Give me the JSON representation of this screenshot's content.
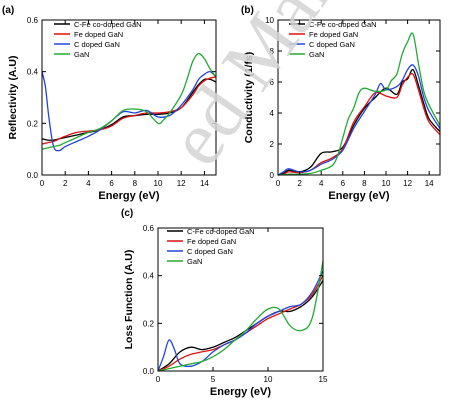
{
  "watermark": "ed Manuscript",
  "chart_data": [
    {
      "type": "line",
      "panel_label": "(a)",
      "xlabel": "Energy (eV)",
      "ylabel": "Reflectivity (A.U)",
      "xlim": [
        0,
        15
      ],
      "ylim": [
        0,
        0.6
      ],
      "xticks": [
        0,
        2,
        4,
        6,
        8,
        10,
        12,
        14
      ],
      "xticklabels": [
        "0",
        "2",
        "4",
        "6",
        "8",
        "10",
        "12",
        "14"
      ],
      "yticks": [
        0,
        0.2,
        0.4,
        0.6
      ],
      "yticklabels": [
        "0.0",
        "0.2",
        "0.4",
        "0.6"
      ],
      "legend": {
        "position": "top-left"
      },
      "series": [
        {
          "name": "C-Fe co-doped GaN",
          "color": "#000000",
          "x": [
            0,
            0.5,
            1,
            1.5,
            2,
            3,
            4,
            5,
            6,
            7,
            8,
            9,
            10,
            11,
            12,
            13,
            13.5,
            14,
            14.5,
            15
          ],
          "y": [
            0.14,
            0.135,
            0.135,
            0.14,
            0.145,
            0.155,
            0.165,
            0.175,
            0.195,
            0.225,
            0.23,
            0.235,
            0.235,
            0.24,
            0.26,
            0.32,
            0.35,
            0.37,
            0.37,
            0.36
          ]
        },
        {
          "name": "Fe doped GaN",
          "color": "#dd1111",
          "x": [
            0,
            0.5,
            1,
            1.5,
            2,
            3,
            4,
            5,
            6,
            7,
            8,
            9,
            10,
            11,
            12,
            13,
            13.5,
            14,
            14.5,
            15
          ],
          "y": [
            0.12,
            0.125,
            0.13,
            0.14,
            0.15,
            0.165,
            0.17,
            0.175,
            0.19,
            0.22,
            0.23,
            0.24,
            0.24,
            0.245,
            0.26,
            0.31,
            0.345,
            0.365,
            0.375,
            0.38
          ]
        },
        {
          "name": "C doped GaN",
          "color": "#2244dd",
          "x": [
            0,
            0.3,
            0.6,
            1,
            1.5,
            2,
            3,
            4,
            5,
            6,
            7,
            8,
            9,
            10,
            11,
            12,
            13,
            13.5,
            14,
            14.5,
            15
          ],
          "y": [
            0.4,
            0.34,
            0.22,
            0.11,
            0.095,
            0.11,
            0.13,
            0.15,
            0.175,
            0.21,
            0.245,
            0.24,
            0.25,
            0.225,
            0.23,
            0.27,
            0.33,
            0.37,
            0.39,
            0.4,
            0.38
          ]
        },
        {
          "name": "GaN",
          "color": "#22aa33",
          "x": [
            0,
            0.5,
            1,
            1.5,
            2,
            3,
            4,
            5,
            6,
            7,
            8,
            9,
            10,
            10.5,
            11,
            12,
            12.5,
            13,
            13.5,
            14,
            14.5,
            15
          ],
          "y": [
            0.1,
            0.105,
            0.11,
            0.115,
            0.125,
            0.145,
            0.165,
            0.18,
            0.21,
            0.25,
            0.255,
            0.245,
            0.2,
            0.215,
            0.24,
            0.31,
            0.37,
            0.44,
            0.47,
            0.45,
            0.41,
            0.38
          ]
        }
      ]
    },
    {
      "type": "line",
      "panel_label": "(b)",
      "xlabel": "Energy (eV)",
      "ylabel": "Conductivity (1/fs)",
      "xlim": [
        0,
        15
      ],
      "ylim": [
        0,
        10
      ],
      "xticks": [
        0,
        2,
        4,
        6,
        8,
        10,
        12,
        14
      ],
      "xticklabels": [
        "0",
        "2",
        "4",
        "6",
        "8",
        "10",
        "12",
        "14"
      ],
      "yticks": [
        0,
        2,
        4,
        6,
        8,
        10
      ],
      "yticklabels": [
        "0",
        "2",
        "4",
        "6",
        "8",
        "10"
      ],
      "legend": {
        "position": "top-left"
      },
      "series": [
        {
          "name": "C-Fe co-doped GaN",
          "color": "#000000",
          "x": [
            0,
            0.5,
            1,
            2,
            3,
            4,
            5,
            6,
            7,
            8,
            9,
            10,
            11,
            11.5,
            12,
            12.5,
            13,
            13.5,
            14,
            15
          ],
          "y": [
            0,
            0.1,
            0.3,
            0.2,
            0.5,
            1.4,
            1.5,
            1.8,
            3.2,
            4.3,
            5.0,
            5.6,
            5.2,
            6.0,
            6.2,
            6.8,
            5.8,
            4.6,
            3.6,
            2.8
          ]
        },
        {
          "name": "Fe doped GaN",
          "color": "#dd1111",
          "x": [
            0,
            0.5,
            1,
            2,
            3,
            4,
            5,
            6,
            7,
            8,
            9,
            10,
            11,
            11.5,
            12,
            12.5,
            13,
            13.5,
            14,
            15
          ],
          "y": [
            0,
            0.05,
            0.2,
            0.15,
            0.3,
            0.8,
            1.1,
            1.7,
            3.4,
            4.4,
            5.3,
            5.1,
            5.0,
            5.8,
            6.3,
            6.5,
            5.5,
            4.3,
            3.4,
            2.6
          ]
        },
        {
          "name": "C doped GaN",
          "color": "#2244dd",
          "x": [
            0,
            0.5,
            1,
            2,
            3,
            4,
            5,
            6,
            7,
            8,
            9,
            9.5,
            10,
            11,
            11.5,
            12,
            12.5,
            13,
            13.5,
            14,
            15
          ],
          "y": [
            0,
            0.2,
            0.4,
            0.2,
            0.3,
            0.7,
            1.0,
            1.6,
            3.0,
            4.1,
            5.2,
            5.9,
            5.5,
            5.7,
            6.1,
            6.8,
            7.1,
            6.4,
            5.0,
            4.1,
            3.0
          ]
        },
        {
          "name": "GaN",
          "color": "#22aa33",
          "x": [
            0,
            1,
            2,
            3,
            4,
            5,
            5.5,
            6,
            6.5,
            7,
            7.5,
            8,
            9,
            10,
            10.5,
            11,
            11.5,
            12,
            12.5,
            13,
            13.5,
            14,
            15
          ],
          "y": [
            0,
            0.05,
            0.05,
            0.1,
            0.3,
            0.6,
            1.2,
            2.4,
            3.6,
            4.3,
            5.3,
            5.6,
            5.4,
            5.5,
            6.1,
            6.5,
            7.8,
            8.6,
            9.1,
            7.2,
            5.4,
            4.5,
            3.2
          ]
        }
      ]
    },
    {
      "type": "line",
      "panel_label": "(c)",
      "xlabel": "Energy (eV)",
      "ylabel": "Loss Function (A.U)",
      "xlim": [
        0,
        15
      ],
      "ylim": [
        0,
        0.6
      ],
      "xticks": [
        0,
        5,
        10,
        15
      ],
      "xticklabels": [
        "0",
        "5",
        "10",
        "15"
      ],
      "yticks": [
        0,
        0.2,
        0.4,
        0.6
      ],
      "yticklabels": [
        "0.0",
        "0.2",
        "0.4",
        "0.6"
      ],
      "legend": {
        "position": "top-left"
      },
      "series": [
        {
          "name": "C-Fe co-doped GaN",
          "color": "#000000",
          "x": [
            0,
            1,
            2,
            3,
            4,
            5,
            6,
            7,
            8,
            9,
            10,
            11,
            12,
            13,
            14,
            15
          ],
          "y": [
            0,
            0.03,
            0.08,
            0.1,
            0.09,
            0.1,
            0.12,
            0.14,
            0.17,
            0.2,
            0.23,
            0.25,
            0.25,
            0.27,
            0.31,
            0.38
          ]
        },
        {
          "name": "Fe doped GaN",
          "color": "#dd1111",
          "x": [
            0,
            1,
            2,
            3,
            4,
            5,
            6,
            7,
            8,
            9,
            10,
            11,
            12,
            13,
            14,
            15
          ],
          "y": [
            0,
            0.02,
            0.05,
            0.07,
            0.08,
            0.09,
            0.11,
            0.13,
            0.16,
            0.19,
            0.22,
            0.24,
            0.26,
            0.28,
            0.32,
            0.4
          ]
        },
        {
          "name": "C doped GaN",
          "color": "#2244dd",
          "x": [
            0,
            0.5,
            1,
            1.5,
            2,
            3,
            4,
            5,
            6,
            7,
            8,
            9,
            10,
            11,
            12,
            13,
            14,
            15
          ],
          "y": [
            0,
            0.06,
            0.13,
            0.09,
            0.03,
            0.02,
            0.04,
            0.08,
            0.11,
            0.13,
            0.16,
            0.2,
            0.23,
            0.25,
            0.27,
            0.28,
            0.33,
            0.42
          ]
        },
        {
          "name": "GaN",
          "color": "#22aa33",
          "x": [
            0,
            1,
            2,
            3,
            4,
            5,
            6,
            7,
            8,
            9,
            10,
            11,
            12,
            13,
            14,
            15
          ],
          "y": [
            0,
            0.01,
            0.02,
            0.03,
            0.04,
            0.06,
            0.09,
            0.13,
            0.17,
            0.22,
            0.26,
            0.26,
            0.19,
            0.17,
            0.22,
            0.46
          ]
        }
      ]
    }
  ]
}
